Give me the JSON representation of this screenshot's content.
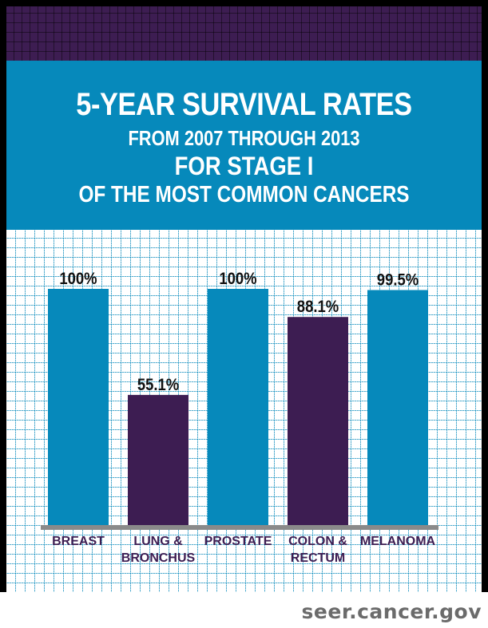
{
  "header": {
    "line1": "5-YEAR SURVIVAL RATES",
    "line2": "FROM 2007 THROUGH 2013",
    "line3": "FOR STAGE I",
    "line4": "OF THE MOST COMMON CANCERS"
  },
  "colors": {
    "primary_blue": "#0689bb",
    "dark_purple": "#3d1d52",
    "baseline_gray": "#8a8a8a",
    "label_text": "#3d1d52",
    "value_text": "#111111"
  },
  "chart_data": {
    "type": "bar",
    "title": "5-YEAR SURVIVAL RATES FROM 2007 THROUGH 2013 FOR STAGE I OF THE MOST COMMON CANCERS",
    "xlabel": "",
    "ylabel": "",
    "ylim": [
      0,
      100
    ],
    "grid": false,
    "categories": [
      "BREAST",
      "LUNG & BRONCHUS",
      "PROSTATE",
      "COLON & RECTUM",
      "MELANOMA"
    ],
    "category_lines": [
      [
        "BREAST"
      ],
      [
        "LUNG &",
        "BRONCHUS"
      ],
      [
        "PROSTATE"
      ],
      [
        "COLON &",
        "RECTUM"
      ],
      [
        "MELANOMA"
      ]
    ],
    "values": [
      100,
      55.1,
      100,
      88.1,
      99.5
    ],
    "data_labels": [
      "100%",
      "55.1%",
      "100%",
      "88.1%",
      "99.5%"
    ],
    "bar_colors": [
      "#0689bb",
      "#3d1d52",
      "#0689bb",
      "#3d1d52",
      "#0689bb"
    ]
  },
  "footer": {
    "source": "seer.cancer.gov"
  }
}
